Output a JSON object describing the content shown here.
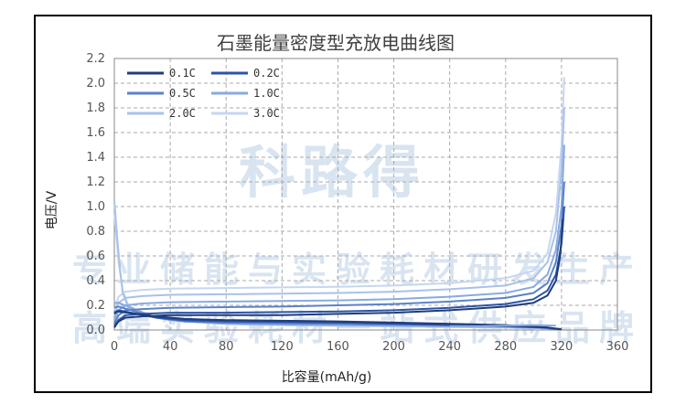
{
  "watermark": {
    "main": "科路得",
    "line1": "专业储能与实验耗材研发生产",
    "line2": "高端实验耗材一站式供应品牌"
  },
  "chart_data": {
    "type": "line",
    "title": "石墨能量密度型充放电曲线图",
    "xlabel": "比容量(mAh/g)",
    "ylabel": "电压/V",
    "xlim": [
      0,
      360
    ],
    "ylim": [
      0,
      2.2
    ],
    "x_ticks": [
      0,
      40,
      80,
      120,
      160,
      200,
      240,
      280,
      320,
      360
    ],
    "y_ticks": [
      "0.0",
      "0.2",
      "0.4",
      "0.6",
      "0.8",
      "1.0",
      "1.2",
      "1.4",
      "1.6",
      "1.8",
      "2.0",
      "2.2"
    ],
    "grid": true,
    "legend_position": "top-left",
    "series": [
      {
        "name": "0.1C",
        "color": "#1f3c7a",
        "charge": [
          [
            0,
            0.02
          ],
          [
            3,
            0.07
          ],
          [
            8,
            0.1
          ],
          [
            20,
            0.11
          ],
          [
            40,
            0.12
          ],
          [
            80,
            0.12
          ],
          [
            120,
            0.12
          ],
          [
            160,
            0.13
          ],
          [
            200,
            0.14
          ],
          [
            240,
            0.16
          ],
          [
            280,
            0.19
          ],
          [
            300,
            0.22
          ],
          [
            310,
            0.28
          ],
          [
            316,
            0.4
          ],
          [
            319,
            0.6
          ],
          [
            321,
            0.9
          ]
        ],
        "discharge": [
          [
            0,
            0.13
          ],
          [
            2,
            0.15
          ],
          [
            10,
            0.14
          ],
          [
            30,
            0.11
          ],
          [
            50,
            0.09
          ],
          [
            80,
            0.08
          ],
          [
            120,
            0.075
          ],
          [
            160,
            0.07
          ],
          [
            200,
            0.06
          ],
          [
            240,
            0.05
          ],
          [
            280,
            0.04
          ],
          [
            310,
            0.02
          ],
          [
            320,
            0.005
          ]
        ]
      },
      {
        "name": "0.2C",
        "color": "#2b54a8",
        "charge": [
          [
            0,
            0.03
          ],
          [
            3,
            0.08
          ],
          [
            8,
            0.12
          ],
          [
            20,
            0.13
          ],
          [
            40,
            0.14
          ],
          [
            80,
            0.14
          ],
          [
            120,
            0.145
          ],
          [
            160,
            0.15
          ],
          [
            200,
            0.16
          ],
          [
            240,
            0.18
          ],
          [
            280,
            0.21
          ],
          [
            300,
            0.25
          ],
          [
            310,
            0.32
          ],
          [
            316,
            0.45
          ],
          [
            320,
            0.7
          ],
          [
            322,
            1.0
          ]
        ],
        "discharge": [
          [
            0,
            0.14
          ],
          [
            3,
            0.16
          ],
          [
            12,
            0.14
          ],
          [
            30,
            0.1
          ],
          [
            50,
            0.08
          ],
          [
            80,
            0.07
          ],
          [
            120,
            0.065
          ],
          [
            160,
            0.06
          ],
          [
            200,
            0.05
          ],
          [
            240,
            0.04
          ],
          [
            280,
            0.03
          ],
          [
            310,
            0.02
          ],
          [
            318,
            0.005
          ]
        ]
      },
      {
        "name": "0.5C",
        "color": "#5b82c9",
        "charge": [
          [
            0,
            0.05
          ],
          [
            3,
            0.12
          ],
          [
            8,
            0.16
          ],
          [
            20,
            0.17
          ],
          [
            40,
            0.18
          ],
          [
            80,
            0.185
          ],
          [
            120,
            0.19
          ],
          [
            160,
            0.2
          ],
          [
            200,
            0.21
          ],
          [
            240,
            0.23
          ],
          [
            280,
            0.26
          ],
          [
            300,
            0.3
          ],
          [
            310,
            0.38
          ],
          [
            316,
            0.55
          ],
          [
            320,
            0.85
          ],
          [
            322,
            1.2
          ]
        ],
        "discharge": [
          [
            0,
            0.18
          ],
          [
            3,
            0.19
          ],
          [
            12,
            0.16
          ],
          [
            30,
            0.1
          ],
          [
            50,
            0.07
          ],
          [
            80,
            0.06
          ],
          [
            120,
            0.055
          ],
          [
            160,
            0.05
          ],
          [
            200,
            0.045
          ],
          [
            240,
            0.04
          ],
          [
            280,
            0.03
          ],
          [
            305,
            0.02
          ],
          [
            315,
            0.005
          ]
        ]
      },
      {
        "name": "1.0C",
        "color": "#8aaadf",
        "charge": [
          [
            0,
            0.08
          ],
          [
            3,
            0.16
          ],
          [
            8,
            0.2
          ],
          [
            20,
            0.215
          ],
          [
            40,
            0.225
          ],
          [
            80,
            0.23
          ],
          [
            120,
            0.235
          ],
          [
            160,
            0.24
          ],
          [
            200,
            0.25
          ],
          [
            240,
            0.27
          ],
          [
            280,
            0.3
          ],
          [
            300,
            0.35
          ],
          [
            310,
            0.45
          ],
          [
            316,
            0.65
          ],
          [
            320,
            1.0
          ],
          [
            322,
            1.5
          ]
        ],
        "discharge": [
          [
            0,
            0.22
          ],
          [
            3,
            0.22
          ],
          [
            12,
            0.18
          ],
          [
            30,
            0.1
          ],
          [
            50,
            0.07
          ],
          [
            80,
            0.05
          ],
          [
            120,
            0.045
          ],
          [
            160,
            0.04
          ],
          [
            200,
            0.035
          ],
          [
            240,
            0.03
          ],
          [
            280,
            0.025
          ],
          [
            300,
            0.02
          ],
          [
            312,
            0.005
          ]
        ]
      },
      {
        "name": "2.0C",
        "color": "#a9c1ea",
        "charge": [
          [
            0,
            0.12
          ],
          [
            3,
            0.22
          ],
          [
            8,
            0.26
          ],
          [
            20,
            0.275
          ],
          [
            40,
            0.285
          ],
          [
            80,
            0.29
          ],
          [
            120,
            0.295
          ],
          [
            160,
            0.3
          ],
          [
            200,
            0.31
          ],
          [
            240,
            0.33
          ],
          [
            280,
            0.36
          ],
          [
            300,
            0.42
          ],
          [
            310,
            0.55
          ],
          [
            316,
            0.8
          ],
          [
            320,
            1.3
          ],
          [
            322,
            1.8
          ]
        ],
        "discharge": [
          [
            0,
            1.05
          ],
          [
            2,
            0.75
          ],
          [
            4,
            0.5
          ],
          [
            6,
            0.3
          ],
          [
            10,
            0.18
          ],
          [
            20,
            0.12
          ],
          [
            40,
            0.08
          ],
          [
            80,
            0.05
          ],
          [
            120,
            0.04
          ],
          [
            160,
            0.035
          ],
          [
            200,
            0.03
          ],
          [
            240,
            0.025
          ],
          [
            280,
            0.02
          ],
          [
            300,
            0.015
          ],
          [
            310,
            0.005
          ]
        ]
      },
      {
        "name": "3.0C",
        "color": "#c6d6f0",
        "charge": [
          [
            0,
            0.16
          ],
          [
            3,
            0.27
          ],
          [
            8,
            0.31
          ],
          [
            20,
            0.325
          ],
          [
            40,
            0.335
          ],
          [
            80,
            0.34
          ],
          [
            120,
            0.345
          ],
          [
            160,
            0.35
          ],
          [
            200,
            0.36
          ],
          [
            240,
            0.38
          ],
          [
            280,
            0.42
          ],
          [
            300,
            0.48
          ],
          [
            310,
            0.62
          ],
          [
            316,
            0.95
          ],
          [
            320,
            1.5
          ],
          [
            322,
            2.05
          ]
        ],
        "discharge": [
          [
            0,
            0.95
          ],
          [
            3,
            0.55
          ],
          [
            6,
            0.32
          ],
          [
            10,
            0.2
          ],
          [
            20,
            0.13
          ],
          [
            40,
            0.08
          ],
          [
            80,
            0.05
          ],
          [
            120,
            0.04
          ],
          [
            160,
            0.035
          ],
          [
            200,
            0.03
          ],
          [
            240,
            0.025
          ],
          [
            280,
            0.02
          ],
          [
            300,
            0.01
          ],
          [
            305,
            0.005
          ]
        ]
      }
    ],
    "extra_segment": {
      "color": "#8aaadf",
      "points": [
        [
          240,
          0.03
        ],
        [
          260,
          0.03
        ],
        [
          280,
          0.035
        ],
        [
          300,
          0.04
        ],
        [
          316,
          0.035
        ]
      ]
    }
  }
}
